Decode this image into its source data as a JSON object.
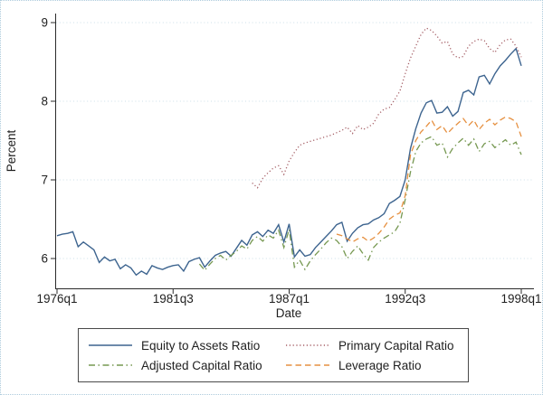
{
  "figure": {
    "background": "#ffffff",
    "canvas_border_color": "#adcbdc",
    "axis_color": "#2b2b2b",
    "grid_color": "#ccdfe9",
    "text_color": "#1f1f1f"
  },
  "chart_data": {
    "type": "line",
    "title": "",
    "xlabel": "Date",
    "ylabel": "Percent",
    "x_unit": "quarterly dates, quarters indexed from 1976q1",
    "xlim_quarters": [
      0,
      88
    ],
    "ylim": [
      5.65,
      9.1
    ],
    "grid": true,
    "legend_position": "bottom",
    "x_ticks": [
      {
        "q": 0,
        "label": "1976q1"
      },
      {
        "q": 22,
        "label": "1981q3"
      },
      {
        "q": 44,
        "label": "1987q1"
      },
      {
        "q": 66,
        "label": "1992q3"
      },
      {
        "q": 88,
        "label": "1998q1"
      }
    ],
    "y_ticks": [
      {
        "v": 6,
        "label": "6"
      },
      {
        "v": 7,
        "label": "7"
      },
      {
        "v": 8,
        "label": "8"
      },
      {
        "v": 9,
        "label": "9"
      }
    ],
    "series": [
      {
        "name": "Equity to Assets Ratio",
        "color": "#3d648f",
        "dash": "solid",
        "start_label": "1976q1",
        "start_q": 0,
        "values": [
          6.29,
          6.31,
          6.32,
          6.34,
          6.15,
          6.21,
          6.16,
          6.11,
          5.95,
          6.02,
          5.97,
          5.99,
          5.87,
          5.92,
          5.88,
          5.79,
          5.84,
          5.8,
          5.91,
          5.88,
          5.86,
          5.89,
          5.91,
          5.92,
          5.84,
          5.96,
          5.99,
          6.01,
          5.89,
          5.97,
          6.04,
          6.07,
          6.09,
          6.03,
          6.13,
          6.23,
          6.17,
          6.3,
          6.34,
          6.28,
          6.36,
          6.32,
          6.43,
          6.21,
          6.44,
          6.02,
          6.11,
          6.03,
          6.05,
          6.14,
          6.21,
          6.28,
          6.35,
          6.43,
          6.46,
          6.22,
          6.32,
          6.39,
          6.43,
          6.44,
          6.49,
          6.52,
          6.57,
          6.7,
          6.74,
          6.79,
          7.0,
          7.4,
          7.65,
          7.85,
          7.98,
          8.01,
          7.85,
          7.86,
          7.93,
          7.81,
          7.87,
          8.11,
          8.14,
          8.08,
          8.31,
          8.33,
          8.22,
          8.35,
          8.45,
          8.52,
          8.6,
          8.67,
          8.45
        ]
      },
      {
        "name": "Primary Capital Ratio",
        "color": "#a55f66",
        "dash": "dotted",
        "start_label": "1985q2",
        "start_q": 37,
        "values": [
          6.96,
          6.9,
          7.02,
          7.09,
          7.15,
          7.18,
          7.07,
          7.24,
          7.35,
          7.44,
          7.47,
          7.49,
          7.51,
          7.53,
          7.55,
          7.57,
          7.6,
          7.63,
          7.67,
          7.59,
          7.69,
          7.64,
          7.67,
          7.72,
          7.84,
          7.9,
          7.92,
          8.02,
          8.13,
          8.35,
          8.55,
          8.7,
          8.85,
          8.93,
          8.9,
          8.83,
          8.74,
          8.76,
          8.6,
          8.55,
          8.57,
          8.7,
          8.76,
          8.79,
          8.77,
          8.67,
          8.62,
          8.72,
          8.78,
          8.79,
          8.7,
          8.56
        ]
      },
      {
        "name": "Adjusted Capital Ratio",
        "color": "#769851",
        "dash": "dashdot",
        "start_label": "1982q4",
        "start_q": 27,
        "values": [
          5.93,
          5.85,
          5.93,
          6.0,
          6.04,
          5.98,
          6.04,
          6.09,
          6.16,
          6.12,
          6.23,
          6.28,
          6.22,
          6.3,
          6.26,
          6.36,
          6.14,
          6.37,
          5.89,
          5.98,
          5.86,
          5.97,
          6.05,
          6.12,
          6.2,
          6.26,
          6.23,
          6.15,
          6.0,
          6.09,
          6.16,
          6.06,
          5.98,
          6.14,
          6.21,
          6.26,
          6.3,
          6.34,
          6.45,
          6.75,
          7.1,
          7.36,
          7.47,
          7.52,
          7.55,
          7.44,
          7.47,
          7.29,
          7.4,
          7.47,
          7.53,
          7.44,
          7.52,
          7.36,
          7.46,
          7.49,
          7.41,
          7.46,
          7.51,
          7.44,
          7.48,
          7.32
        ]
      },
      {
        "name": "Leverage Ratio",
        "color": "#e69040",
        "dash": "dashed",
        "start_label": "1989q2",
        "start_q": 53,
        "values": [
          6.31,
          6.29,
          6.25,
          6.21,
          6.25,
          6.27,
          6.22,
          6.26,
          6.32,
          6.4,
          6.5,
          6.55,
          6.58,
          6.8,
          7.32,
          7.5,
          7.61,
          7.68,
          7.76,
          7.64,
          7.69,
          7.59,
          7.66,
          7.72,
          7.78,
          7.69,
          7.76,
          7.64,
          7.72,
          7.77,
          7.7,
          7.76,
          7.8,
          7.78,
          7.74,
          7.55
        ]
      }
    ]
  }
}
